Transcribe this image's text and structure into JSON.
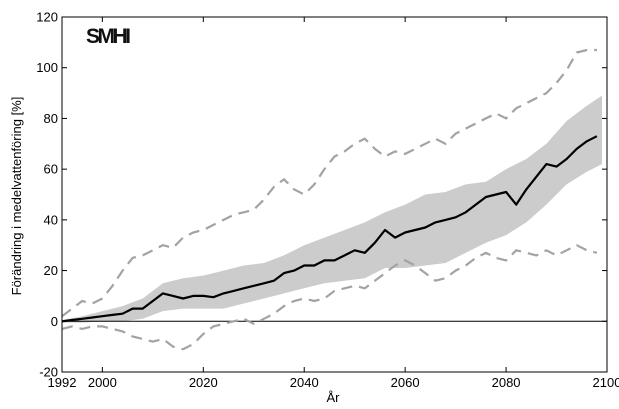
{
  "chart_data": {
    "type": "line",
    "logo": "SMHI",
    "xlabel": "År",
    "ylabel": "Förändring i medelvattenföring [%]",
    "xlim": [
      1992,
      2100
    ],
    "ylim": [
      -20,
      120
    ],
    "xticks": [
      1992,
      2000,
      2020,
      2040,
      2060,
      2080,
      2100
    ],
    "yticks": [
      -20,
      0,
      20,
      40,
      60,
      80,
      100,
      120
    ],
    "reference_line": 0,
    "grid": false,
    "colors": {
      "median": "#000000",
      "band": "#cccccc",
      "extremes": "#a3a3a3",
      "zero_line": "#000000"
    },
    "median": {
      "x": [
        1992,
        1994,
        1996,
        1998,
        2000,
        2002,
        2004,
        2006,
        2008,
        2010,
        2012,
        2014,
        2016,
        2018,
        2020,
        2022,
        2024,
        2026,
        2028,
        2030,
        2032,
        2034,
        2036,
        2038,
        2040,
        2042,
        2044,
        2046,
        2048,
        2050,
        2052,
        2054,
        2056,
        2058,
        2060,
        2062,
        2064,
        2066,
        2068,
        2070,
        2072,
        2074,
        2076,
        2078,
        2080,
        2082,
        2084,
        2086,
        2088,
        2090,
        2092,
        2094,
        2096,
        2098
      ],
      "y": [
        0,
        0.5,
        1,
        1.5,
        2,
        2.5,
        3,
        5,
        5,
        8,
        11,
        10,
        9,
        10,
        10,
        9.5,
        11,
        12,
        13,
        14,
        15,
        16,
        19,
        20,
        22,
        22,
        24,
        24,
        26,
        28,
        27,
        31,
        36,
        33,
        35,
        36,
        37,
        39,
        40,
        41,
        43,
        46,
        49,
        50,
        51,
        46,
        52,
        57,
        62,
        61,
        64,
        68,
        71,
        73
      ]
    },
    "band": {
      "x": [
        1992,
        1996,
        2000,
        2004,
        2008,
        2012,
        2016,
        2020,
        2024,
        2028,
        2032,
        2036,
        2040,
        2044,
        2048,
        2052,
        2056,
        2060,
        2064,
        2068,
        2072,
        2076,
        2080,
        2084,
        2088,
        2092,
        2096,
        2099
      ],
      "upper": [
        0.5,
        2,
        4,
        6,
        9,
        15,
        17,
        18,
        20,
        22,
        23,
        26,
        30,
        33,
        36,
        39,
        43,
        46,
        50,
        51,
        54,
        55,
        60,
        64,
        70,
        79,
        85,
        89
      ],
      "lower": [
        -0.5,
        -0.5,
        0,
        0,
        1,
        4,
        5,
        5,
        5,
        7,
        9,
        11,
        13,
        15,
        16,
        17,
        21,
        21,
        22,
        23,
        27,
        31,
        34,
        39,
        46,
        54,
        59,
        62
      ]
    },
    "extreme_upper": {
      "x": [
        1992,
        1994,
        1996,
        1998,
        2000,
        2002,
        2004,
        2006,
        2008,
        2010,
        2012,
        2014,
        2016,
        2018,
        2020,
        2022,
        2024,
        2026,
        2028,
        2030,
        2032,
        2034,
        2036,
        2038,
        2040,
        2042,
        2044,
        2046,
        2048,
        2050,
        2052,
        2054,
        2056,
        2058,
        2060,
        2062,
        2064,
        2066,
        2068,
        2070,
        2072,
        2074,
        2076,
        2078,
        2080,
        2082,
        2084,
        2086,
        2088,
        2090,
        2092,
        2094,
        2096,
        2098
      ],
      "y": [
        2,
        5,
        8,
        7,
        9,
        14,
        20,
        25,
        26,
        28,
        30,
        29,
        33,
        35,
        36,
        38,
        40,
        42,
        43,
        44,
        48,
        53,
        56,
        52,
        50,
        54,
        60,
        65,
        67,
        70,
        72,
        68,
        65,
        67,
        66,
        68,
        70,
        72,
        70,
        74,
        76,
        78,
        80,
        82,
        80,
        84,
        86,
        88,
        90,
        94,
        99,
        106,
        107,
        107
      ]
    },
    "extreme_lower": {
      "x": [
        1992,
        1994,
        1996,
        1998,
        2000,
        2002,
        2004,
        2006,
        2008,
        2010,
        2012,
        2014,
        2016,
        2018,
        2020,
        2022,
        2024,
        2026,
        2028,
        2030,
        2032,
        2034,
        2036,
        2038,
        2040,
        2042,
        2044,
        2046,
        2048,
        2050,
        2052,
        2054,
        2056,
        2058,
        2060,
        2062,
        2064,
        2066,
        2068,
        2070,
        2072,
        2074,
        2076,
        2078,
        2080,
        2082,
        2084,
        2086,
        2088,
        2090,
        2092,
        2094,
        2096,
        2098
      ],
      "y": [
        -3,
        -2,
        -3,
        -2,
        -2,
        -3,
        -4,
        -6,
        -7,
        -8,
        -7,
        -10,
        -11,
        -9,
        -5,
        -2,
        -1,
        0,
        1,
        -1,
        1,
        3,
        6,
        8,
        9,
        8,
        9,
        12,
        13,
        14,
        13,
        16,
        19,
        22,
        24,
        22,
        19,
        16,
        17,
        20,
        22,
        25,
        27,
        25,
        24,
        28,
        27,
        26,
        28,
        26,
        28,
        30,
        28,
        27
      ]
    }
  }
}
